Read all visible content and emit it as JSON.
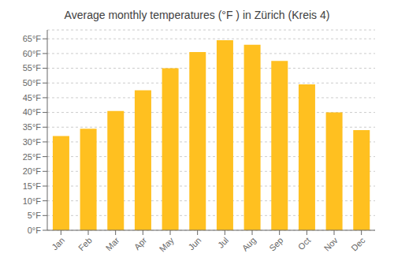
{
  "chart_data": {
    "type": "bar",
    "title": "Average monthly temperatures (°F ) in Zürich (Kreis 4)",
    "categories": [
      "Jan",
      "Feb",
      "Mar",
      "Apr",
      "May",
      "Jun",
      "Jul",
      "Aug",
      "Sep",
      "Oct",
      "Nov",
      "Dec"
    ],
    "values": [
      32,
      34.5,
      40.5,
      47.5,
      55,
      60.5,
      64.5,
      63,
      57.5,
      49.5,
      40,
      34
    ],
    "color": "#FFC020",
    "ylim": [
      0,
      68
    ],
    "yticks": [
      {
        "value": 0,
        "label": "0°F"
      },
      {
        "value": 5,
        "label": "5°F"
      },
      {
        "value": 10,
        "label": "10°F"
      },
      {
        "value": 15,
        "label": "15°F"
      },
      {
        "value": 20,
        "label": "20°F"
      },
      {
        "value": 25,
        "label": "25°F"
      },
      {
        "value": 30,
        "label": "30°F"
      },
      {
        "value": 35,
        "label": "35°F"
      },
      {
        "value": 40,
        "label": "40°F"
      },
      {
        "value": 45,
        "label": "45°F"
      },
      {
        "value": 50,
        "label": "50°F"
      },
      {
        "value": 55,
        "label": "55°F"
      },
      {
        "value": 60,
        "label": "60°F"
      },
      {
        "value": 65,
        "label": "65°F"
      }
    ],
    "grid": true
  }
}
